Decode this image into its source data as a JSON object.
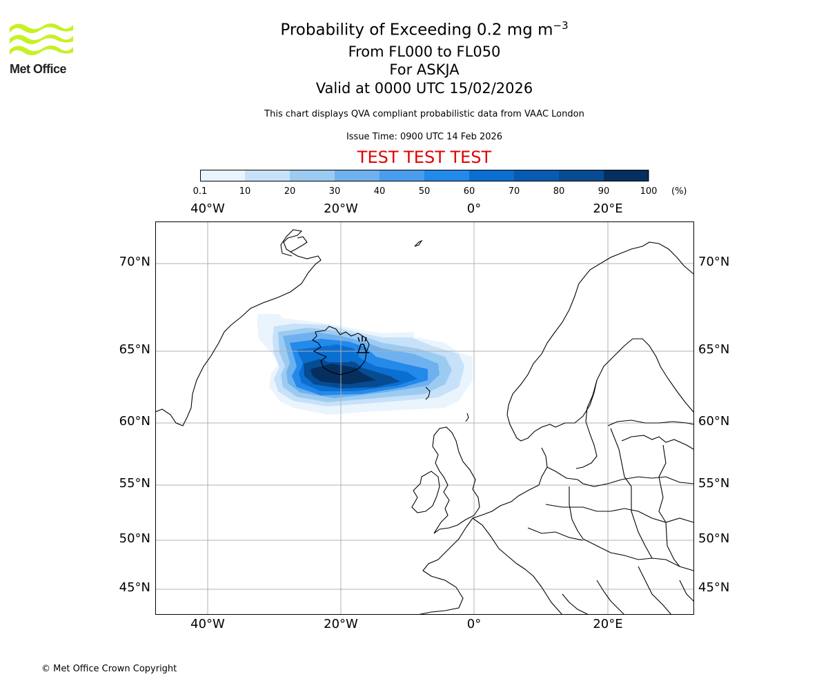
{
  "logo": {
    "text": "Met Office",
    "color": "#c6f123"
  },
  "title": {
    "line1": "Probability of Exceeding 0.2 mg m",
    "line1_sup": "−3",
    "line2": "From FL000 to FL050",
    "line3": "For ASKJA",
    "line4": "Valid at 0000 UTC 15/02/2026"
  },
  "subtitle": "This chart displays QVA compliant probabilistic data from VAAC London",
  "issue_time": "Issue Time: 0900 UTC 14 Feb 2026",
  "test_banner": "TEST TEST TEST",
  "colorbar": {
    "ticks": [
      "0.1",
      "10",
      "20",
      "30",
      "40",
      "50",
      "60",
      "70",
      "80",
      "90",
      "100"
    ],
    "unit": "(%)",
    "colors": [
      "#eaf4fd",
      "#c7e1f8",
      "#9ccbf2",
      "#6eb1ee",
      "#4a9ded",
      "#2389ea",
      "#0a6fd1",
      "#085bb0",
      "#074b92",
      "#052f5e"
    ]
  },
  "map": {
    "lon_labels": [
      "40°W",
      "20°W",
      "0°",
      "20°E"
    ],
    "lat_labels": [
      "70°N",
      "65°N",
      "60°N",
      "55°N",
      "50°N",
      "45°N"
    ],
    "volcano": "ASKJA"
  },
  "copyright": "© Met Office Crown Copyright"
}
